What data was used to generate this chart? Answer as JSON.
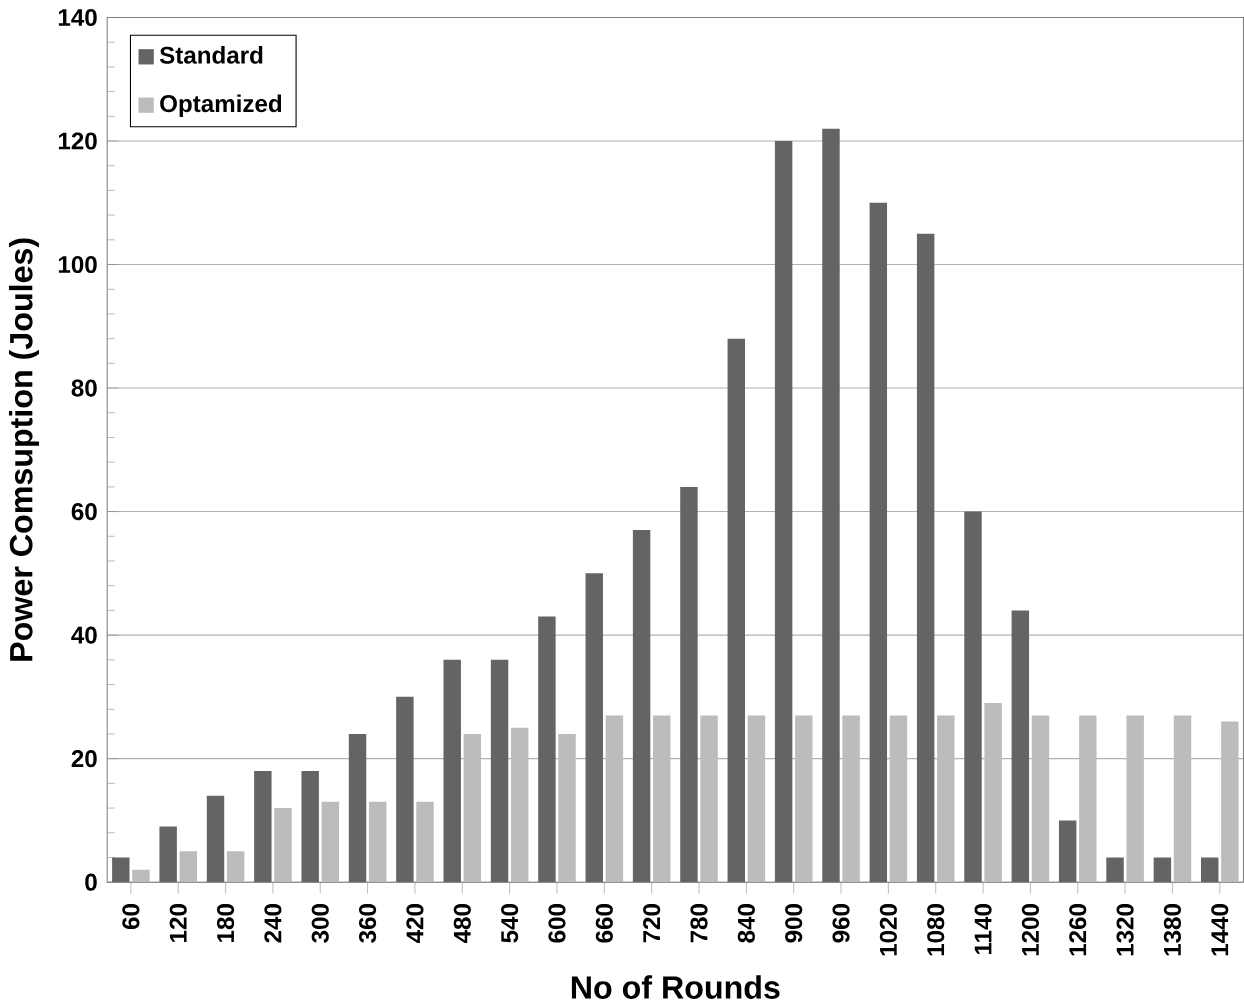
{
  "chart_data": {
    "type": "bar",
    "xlabel": "No of Rounds",
    "ylabel": "Power Comsuption (Joules)",
    "categories": [
      "60",
      "120",
      "180",
      "240",
      "300",
      "360",
      "420",
      "480",
      "540",
      "600",
      "660",
      "720",
      "780",
      "840",
      "900",
      "960",
      "1020",
      "1080",
      "1140",
      "1200",
      "1260",
      "1320",
      "1380",
      "1440"
    ],
    "series": [
      {
        "name": "Standard",
        "color": "#646464",
        "values": [
          4,
          9,
          14,
          18,
          18,
          24,
          30,
          36,
          36,
          43,
          50,
          57,
          64,
          88,
          120,
          122,
          110,
          105,
          60,
          44,
          10,
          4,
          4,
          4
        ]
      },
      {
        "name": "Optamized",
        "color": "#bcbcbc",
        "values": [
          2,
          5,
          5,
          12,
          13,
          13,
          13,
          24,
          25,
          24,
          27,
          27,
          27,
          27,
          27,
          27,
          27,
          27,
          29,
          27,
          27,
          27,
          27,
          26
        ]
      }
    ],
    "ylim": [
      0,
      140
    ],
    "yticks": [
      0,
      20,
      40,
      60,
      80,
      100,
      120,
      140
    ],
    "grid": "y",
    "legend": "top left"
  }
}
